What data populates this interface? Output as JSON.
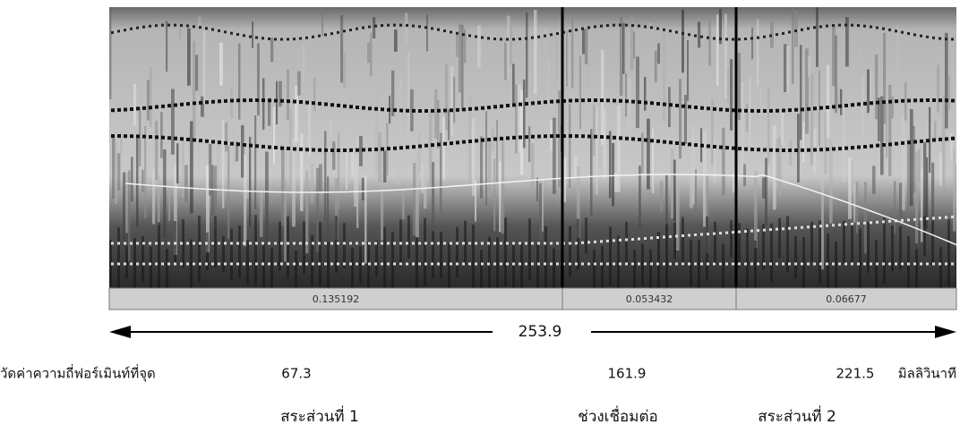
{
  "segments": [
    0.135192,
    0.053432,
    0.06677
  ],
  "duration": 253.9,
  "measurement": {
    "label": "วัดค่าความถี่ฟอร์เมินท์ที่จุด",
    "points": [
      67.3,
      161.9,
      221.5
    ],
    "unit": "มิลลิวินาที"
  },
  "sections": [
    "สระส่วนที่ 1",
    "ช่วงเชื่อมต่อ",
    "สระส่วนที่ 2"
  ]
}
